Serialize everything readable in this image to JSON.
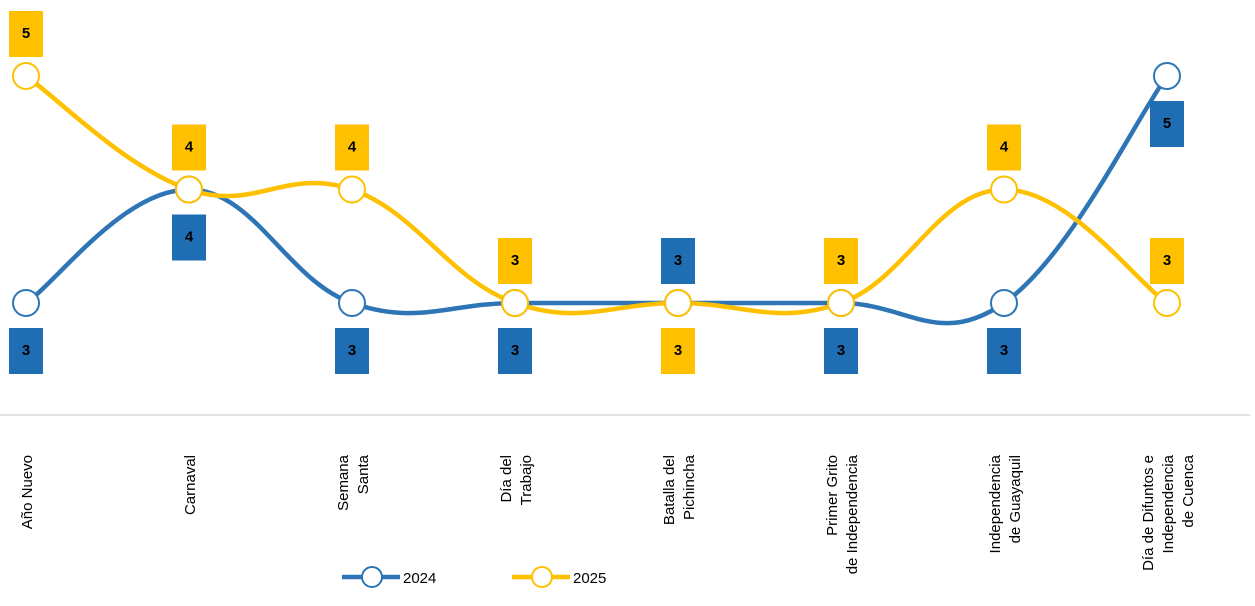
{
  "chart_data": {
    "type": "line",
    "categories": [
      [
        "Año Nuevo"
      ],
      [
        "Carnaval"
      ],
      [
        "Semana",
        "Santa"
      ],
      [
        "Día del",
        "Trabajo"
      ],
      [
        "Batalla del",
        "Pichincha"
      ],
      [
        "Primer Grito",
        "de Independencia"
      ],
      [
        "Independencia",
        "de Guayaquil"
      ],
      [
        "Día de Difuntos e",
        "Independencia",
        "de Cuenca"
      ]
    ],
    "series": [
      {
        "name": "2024",
        "color": "#2e75b6",
        "label_color": "#1f6eb4",
        "values": [
          3,
          4,
          3,
          3,
          3,
          3,
          3,
          5
        ]
      },
      {
        "name": "2025",
        "color": "#ffc000",
        "label_color": "#ffc000",
        "values": [
          5,
          4,
          4,
          3,
          3,
          3,
          4,
          3
        ]
      }
    ],
    "legend": "bottom"
  }
}
